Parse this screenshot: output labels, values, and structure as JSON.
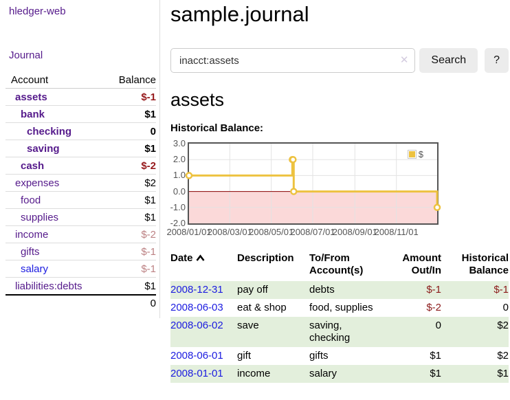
{
  "app": {
    "brand": "hledger-web",
    "nav_journal": "Journal"
  },
  "sidebar": {
    "header": {
      "account": "Account",
      "balance": "Balance"
    },
    "rows": [
      {
        "name": "assets",
        "balance": "$-1"
      },
      {
        "name": "bank",
        "balance": "$1"
      },
      {
        "name": "checking",
        "balance": "0"
      },
      {
        "name": "saving",
        "balance": "$1"
      },
      {
        "name": "cash",
        "balance": "$-2"
      },
      {
        "name": "expenses",
        "balance": "$2"
      },
      {
        "name": "food",
        "balance": "$1"
      },
      {
        "name": "supplies",
        "balance": "$1"
      },
      {
        "name": "income",
        "balance": "$-2"
      },
      {
        "name": "gifts",
        "balance": "$-1"
      },
      {
        "name": "salary",
        "balance": "$-1"
      },
      {
        "name": "liabilities:debts",
        "balance": "$1"
      }
    ],
    "total": "0"
  },
  "main": {
    "title": "sample.journal",
    "search": {
      "value": "inacct:assets",
      "clear_icon": "✕",
      "button_label": "Search",
      "help_label": "?"
    },
    "account_heading": "assets",
    "chart_label": "Historical Balance:"
  },
  "chart_data": {
    "type": "line",
    "style": "step",
    "title": "Historical Balance:",
    "xrange": [
      "2008-01-01",
      "2008-12-31"
    ],
    "ylim": [
      -2,
      3
    ],
    "yticks": [
      "3.0",
      "2.0",
      "1.0",
      "0.0",
      "-1.0",
      "-2.0"
    ],
    "xticks": [
      "2008/01/01",
      "2008/03/01",
      "2008/05/01",
      "2008/07/01",
      "2008/09/01",
      "2008/11/01"
    ],
    "series": [
      {
        "name": "$",
        "color": "#edc240",
        "points": [
          [
            "2008-01-01",
            1
          ],
          [
            "2008-06-01",
            2
          ],
          [
            "2008-06-02",
            2
          ],
          [
            "2008-06-03",
            0
          ],
          [
            "2008-12-31",
            -1
          ]
        ]
      }
    ],
    "grid": true,
    "legend_position": "top-right",
    "negative_region_color": "#fbd9d9",
    "zero_line_color": "#8b0000",
    "border_color": "#545454"
  },
  "register": {
    "headers": [
      "Date",
      "Description",
      "To/From Account(s)",
      "Amount Out/In",
      "Historical Balance"
    ],
    "rows": [
      {
        "date": "2008-12-31",
        "description": "pay off",
        "accounts": "debts",
        "amount": "$-1",
        "balance": "$-1"
      },
      {
        "date": "2008-06-03",
        "description": "eat & shop",
        "accounts": "food, supplies",
        "amount": "$-2",
        "balance": "0"
      },
      {
        "date": "2008-06-02",
        "description": "save",
        "accounts": "saving, checking",
        "amount": "0",
        "balance": "$2"
      },
      {
        "date": "2008-06-01",
        "description": "gift",
        "accounts": "gifts",
        "amount": "$1",
        "balance": "$2"
      },
      {
        "date": "2008-01-01",
        "description": "income",
        "accounts": "salary",
        "amount": "$1",
        "balance": "$1"
      }
    ]
  }
}
